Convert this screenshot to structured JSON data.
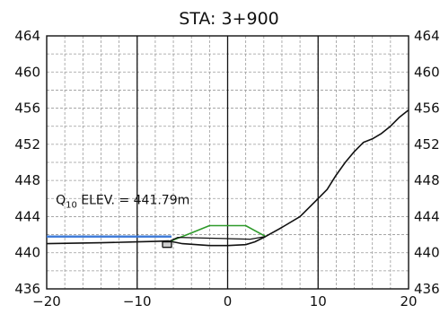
{
  "chart_data": {
    "type": "line",
    "title": "STA: 3+900",
    "xlim": [
      -20,
      20
    ],
    "ylim": [
      436,
      464
    ],
    "x_ticks": [
      "−20",
      "−10",
      "0",
      "10",
      "20"
    ],
    "y_ticks": [
      "436",
      "440",
      "444",
      "448",
      "452",
      "456",
      "460",
      "464"
    ],
    "y_ticks_right": [
      "436",
      "440",
      "444",
      "448",
      "452",
      "456",
      "460",
      "464"
    ],
    "minor_grid": {
      "x_step": 2,
      "y_step": 2
    },
    "major_grid": {
      "x_step": 10
    },
    "annotation": {
      "prefix": "Q",
      "subscript": "10",
      "text": " ELEV.  =  441.79m"
    },
    "colors": {
      "water": "#3a78d8",
      "embankment": "#2e9a2a",
      "line": "#111111",
      "grid": "#9a9a9a"
    },
    "series": [
      {
        "role": "ground",
        "x": [
          -20,
          -14,
          -10,
          -8,
          -6.5,
          -5,
          -2,
          0,
          2,
          3,
          4.2,
          6,
          8,
          10,
          11,
          12,
          13,
          14,
          15,
          16,
          17,
          18,
          19,
          20
        ],
        "y": [
          441.0,
          441.1,
          441.2,
          441.25,
          441.3,
          441.0,
          440.8,
          440.8,
          440.9,
          441.2,
          441.8,
          442.8,
          444.0,
          446.0,
          447.0,
          448.6,
          450.0,
          451.2,
          452.2,
          452.6,
          453.2,
          454.0,
          455.0,
          455.8
        ]
      },
      {
        "role": "embankment",
        "x": [
          -6.8,
          -4.5,
          -2,
          2,
          4.2
        ],
        "y": [
          441.1,
          442.0,
          443.0,
          443.0,
          441.8
        ]
      },
      {
        "role": "embankment-top",
        "x": [
          -6.8,
          -5.5,
          2.5,
          4.2
        ],
        "y": [
          441.1,
          441.7,
          441.5,
          441.8
        ]
      },
      {
        "role": "dam-block",
        "x": [
          -7.2,
          -6.2,
          -6.2,
          -7.2,
          -7.2
        ],
        "y": [
          440.6,
          440.6,
          441.2,
          441.2,
          440.6
        ]
      },
      {
        "role": "water-surface",
        "x": [
          -20,
          -6.2
        ],
        "y": [
          441.79,
          441.79
        ]
      }
    ]
  }
}
